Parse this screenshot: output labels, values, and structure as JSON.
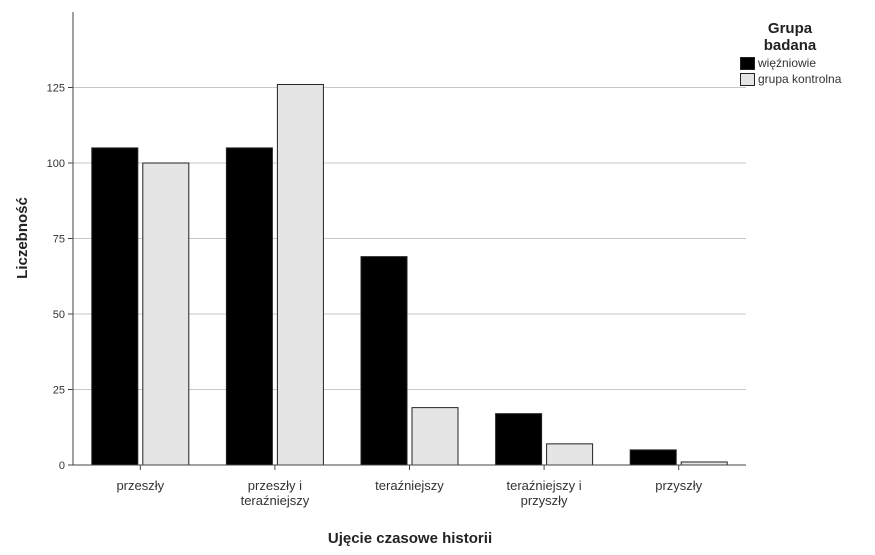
{
  "chart_data": {
    "type": "bar",
    "categories": [
      "przeszły",
      "przeszły i teraźniejszy",
      "teraźniejszy",
      "teraźniejszy i przyszły",
      "przyszły"
    ],
    "category_lines": [
      [
        "przeszły"
      ],
      [
        "przeszły i",
        "teraźniejszy"
      ],
      [
        "teraźniejszy"
      ],
      [
        "teraźniejszy i",
        "przyszły"
      ],
      [
        "przyszły"
      ]
    ],
    "series": [
      {
        "name": "więźniowie",
        "values": [
          105,
          105,
          69,
          17,
          5
        ],
        "color": "#000000"
      },
      {
        "name": "grupa kontrolna",
        "values": [
          100,
          126,
          19,
          7,
          1
        ],
        "color": "#e5e5e5"
      }
    ],
    "xlabel": "Ujęcie czasowe historii",
    "ylabel": "Liczebność",
    "ylim": [
      0,
      150
    ],
    "yticks": [
      0,
      25,
      50,
      75,
      100,
      125
    ],
    "grid": true,
    "legend": {
      "title": "Grupa\nbadana",
      "position": "top-right"
    }
  }
}
